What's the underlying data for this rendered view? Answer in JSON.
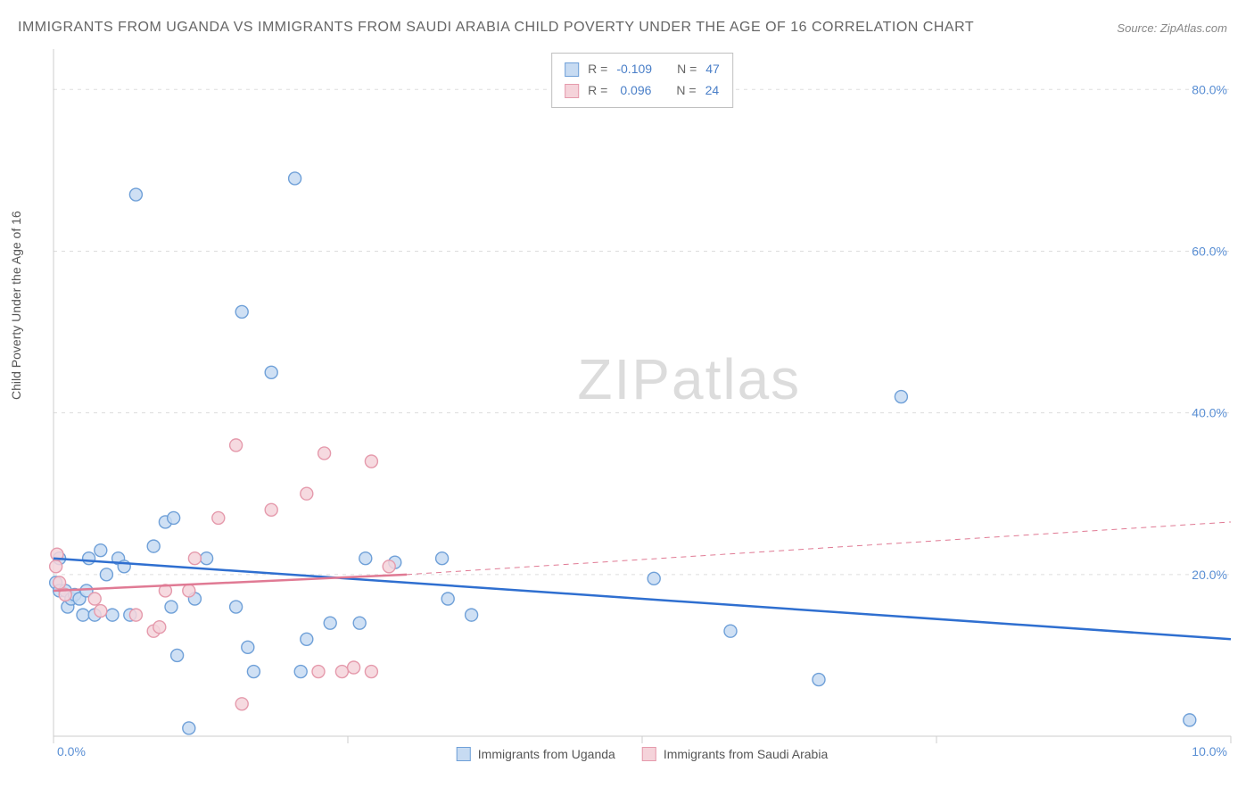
{
  "title": "IMMIGRANTS FROM UGANDA VS IMMIGRANTS FROM SAUDI ARABIA CHILD POVERTY UNDER THE AGE OF 16 CORRELATION CHART",
  "source_label": "Source:",
  "source_value": "ZipAtlas.com",
  "watermark_zip": "ZIP",
  "watermark_atlas": "atlas",
  "y_axis_label": "Child Poverty Under the Age of 16",
  "chart": {
    "type": "scatter",
    "xlim": [
      0,
      10
    ],
    "ylim": [
      0,
      85
    ],
    "x_ticks": [
      0,
      2.5,
      5.0,
      7.5,
      10.0
    ],
    "x_tick_label_left": "0.0%",
    "x_tick_label_right": "10.0%",
    "y_ticks": [
      20,
      40,
      60,
      80
    ],
    "y_tick_labels": [
      "20.0%",
      "40.0%",
      "60.0%",
      "80.0%"
    ],
    "background_color": "#ffffff",
    "grid_color": "#dddddd",
    "axis_color": "#cccccc",
    "marker_radius": 7,
    "marker_stroke_width": 1.4,
    "line_width_solid": 2.5,
    "line_width_dashed": 1,
    "dash_pattern": "6 5",
    "series": [
      {
        "name": "Immigrants from Uganda",
        "legend_label": "Immigrants from Uganda",
        "fill": "#c7dbf2",
        "stroke": "#6fa0d8",
        "line_color": "#2f6fd0",
        "r_label": "R =",
        "r_value": "-0.109",
        "n_label": "N =",
        "n_value": "47",
        "trend": {
          "x1": 0,
          "y1": 22.0,
          "x2": 10,
          "y2": 12.0
        },
        "points": [
          [
            0.02,
            19
          ],
          [
            0.05,
            22
          ],
          [
            0.05,
            18
          ],
          [
            0.1,
            18
          ],
          [
            0.12,
            16
          ],
          [
            0.15,
            17
          ],
          [
            0.18,
            17.5
          ],
          [
            0.22,
            17
          ],
          [
            0.25,
            15
          ],
          [
            0.28,
            18
          ],
          [
            0.3,
            22
          ],
          [
            0.35,
            15
          ],
          [
            0.4,
            23
          ],
          [
            0.45,
            20
          ],
          [
            0.5,
            15
          ],
          [
            0.55,
            22
          ],
          [
            0.6,
            21
          ],
          [
            0.65,
            15
          ],
          [
            0.7,
            67
          ],
          [
            0.85,
            23.5
          ],
          [
            0.95,
            26.5
          ],
          [
            1.0,
            16
          ],
          [
            1.02,
            27
          ],
          [
            1.05,
            10
          ],
          [
            1.15,
            1
          ],
          [
            1.2,
            17
          ],
          [
            1.3,
            22
          ],
          [
            1.55,
            16
          ],
          [
            1.6,
            52.5
          ],
          [
            1.65,
            11
          ],
          [
            1.7,
            8
          ],
          [
            1.85,
            45
          ],
          [
            2.05,
            69
          ],
          [
            2.1,
            8
          ],
          [
            2.15,
            12
          ],
          [
            2.35,
            14
          ],
          [
            2.6,
            14
          ],
          [
            2.65,
            22
          ],
          [
            2.9,
            21.5
          ],
          [
            3.3,
            22
          ],
          [
            3.35,
            17
          ],
          [
            3.55,
            15
          ],
          [
            5.1,
            19.5
          ],
          [
            5.75,
            13
          ],
          [
            6.5,
            7
          ],
          [
            7.2,
            42
          ],
          [
            9.65,
            2
          ]
        ]
      },
      {
        "name": "Immigrants from Saudi Arabia",
        "legend_label": "Immigrants from Saudi Arabia",
        "fill": "#f5d3da",
        "stroke": "#e59aac",
        "line_color": "#e07a94",
        "r_label": "R =",
        "r_value": "0.096",
        "n_label": "N =",
        "n_value": "24",
        "trend_solid": {
          "x1": 0,
          "y1": 18.0,
          "x2": 3.0,
          "y2": 20.0
        },
        "trend_dashed": {
          "x1": 3.0,
          "y1": 20.0,
          "x2": 10,
          "y2": 26.5
        },
        "points": [
          [
            0.02,
            21
          ],
          [
            0.03,
            22.5
          ],
          [
            0.05,
            19
          ],
          [
            0.1,
            17.5
          ],
          [
            0.35,
            17
          ],
          [
            0.4,
            15.5
          ],
          [
            0.7,
            15
          ],
          [
            0.85,
            13
          ],
          [
            0.9,
            13.5
          ],
          [
            0.95,
            18
          ],
          [
            1.15,
            18
          ],
          [
            1.2,
            22
          ],
          [
            1.4,
            27
          ],
          [
            1.55,
            36
          ],
          [
            1.6,
            4
          ],
          [
            1.85,
            28
          ],
          [
            2.15,
            30
          ],
          [
            2.25,
            8
          ],
          [
            2.3,
            35
          ],
          [
            2.45,
            8
          ],
          [
            2.55,
            8.5
          ],
          [
            2.7,
            34
          ],
          [
            2.7,
            8
          ],
          [
            2.85,
            21
          ]
        ]
      }
    ]
  }
}
